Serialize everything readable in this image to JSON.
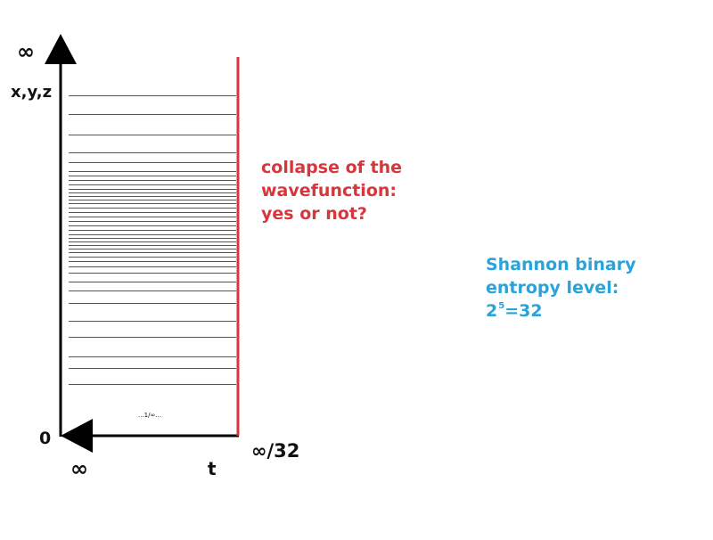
{
  "labels": {
    "infinity_top": "∞",
    "xyz": "x,y,z",
    "zero": "0",
    "infinity_bottom": "∞",
    "t": "t",
    "infinity_over_32": "∞/32",
    "inner_note": "...1/∞..."
  },
  "red_text": {
    "line1": "collapse of the",
    "line2": "wavefunction:",
    "line3": "yes or not?"
  },
  "blue_text": {
    "line1": "Shannon binary",
    "line2": "entropy level:",
    "line3_base": "2",
    "line3_exp": "5",
    "line3_rest": "=32"
  },
  "colors": {
    "axis": "#000000",
    "red_line": "#d6363c",
    "red_text": "#d6363c",
    "blue_text": "#2aa3d8",
    "level_lines": "#555555"
  },
  "icons": {
    "up_arrow": "arrow-up-icon",
    "left_arrow": "arrow-left-icon"
  }
}
